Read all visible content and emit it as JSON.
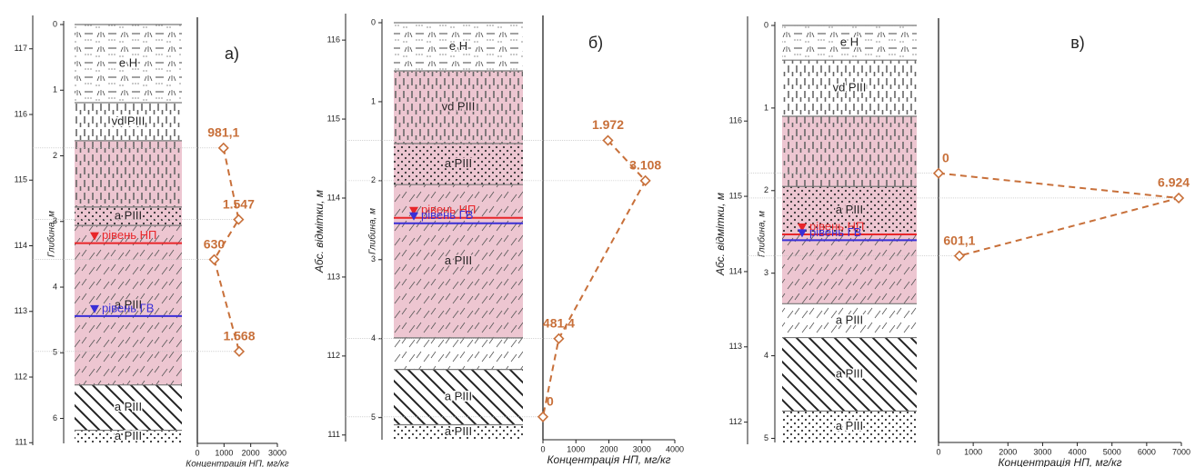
{
  "chart_data": [
    {
      "type": "line",
      "title": "а)",
      "xlabel": "Концентрація НП, мг/кг",
      "ylabel": "Глибина, м",
      "xlim": [
        0,
        3000
      ],
      "xticks": [
        0,
        1000,
        2000,
        3000
      ],
      "ylim": [
        0,
        6.38
      ],
      "yticks": [
        0,
        1,
        2,
        3,
        4,
        5,
        6
      ],
      "y2lim": [
        117.37,
        110.99
      ],
      "y2ticks": [
        117,
        116,
        115,
        114,
        113,
        112,
        111
      ],
      "series": [
        {
          "color": "#c8703a",
          "x": [
            981.1,
            1547,
            630,
            1568
          ],
          "values": [
            1.88,
            2.97,
            3.58,
            4.98
          ],
          "value_labels": [
            "981,1",
            "1.547",
            "630",
            "1.568"
          ]
        }
      ],
      "layers": [
        {
          "label": "е Н",
          "top": 0,
          "bottom": 1.19,
          "pattern": "eh",
          "fill": "#ffffff"
        },
        {
          "label": "vd PIII",
          "top": 1.19,
          "bottom": 1.77,
          "pattern": "dash",
          "fill": "#ffffff"
        },
        {
          "label": null,
          "top": 1.77,
          "bottom": 2.78,
          "pattern": "dash",
          "fill": "#edc6d1"
        },
        {
          "label": "а PIII",
          "top": 2.78,
          "bottom": 3.06,
          "pattern": "dots",
          "fill": "#edc6d1"
        },
        {
          "label": "а PIII",
          "top": 3.06,
          "bottom": 5.49,
          "pattern": "thin",
          "fill": "#edc6d1"
        },
        {
          "label": "а PIII",
          "top": 5.49,
          "bottom": 6.18,
          "pattern": "thick",
          "fill": "#ffffff"
        },
        {
          "label": "а PIII",
          "top": 6.18,
          "bottom": 6.38,
          "pattern": "dots",
          "fill": "#ffffff"
        }
      ],
      "levels": [
        {
          "label": "рівень НП",
          "value": 3.33,
          "color": "#e8262a"
        },
        {
          "label": "рівень ГВ",
          "value": 4.44,
          "color": "#3a2fd6"
        }
      ]
    },
    {
      "type": "line",
      "title": "б)",
      "xlabel": "Концентрація НП, мг/кг",
      "ylabel": "Глибина, м",
      "y2label": "Абс. відмітки, м",
      "xlim": [
        0,
        4000
      ],
      "xticks": [
        0,
        1000,
        2000,
        3000,
        4000
      ],
      "ylim": [
        0,
        5.28
      ],
      "yticks": [
        0,
        1,
        2,
        3,
        4,
        5
      ],
      "y2lim": [
        116.22,
        110.94
      ],
      "y2ticks": [
        116,
        115,
        114,
        113,
        112,
        111
      ],
      "series": [
        {
          "color": "#c8703a",
          "x": [
            1972,
            3108,
            481.4,
            0
          ],
          "values": [
            1.49,
            2.0,
            4.0,
            4.99
          ],
          "value_labels": [
            "1.972",
            "3.108",
            "481,4",
            "0"
          ]
        }
      ],
      "layers": [
        {
          "label": "е Н",
          "top": 0,
          "bottom": 0.61,
          "pattern": "eh",
          "fill": "#ffffff"
        },
        {
          "label": "vd PIII",
          "top": 0.61,
          "bottom": 1.53,
          "pattern": "dash",
          "fill": "#edc6d1"
        },
        {
          "label": "а PIII",
          "top": 1.53,
          "bottom": 2.05,
          "pattern": "dots",
          "fill": "#edc6d1"
        },
        {
          "label": "а PIII",
          "top": 2.05,
          "bottom": 3.99,
          "pattern": "thin",
          "fill": "#edc6d1"
        },
        {
          "label": null,
          "top": 3.99,
          "bottom": 4.39,
          "pattern": "thin",
          "fill": "#ffffff"
        },
        {
          "label": "а PIII",
          "top": 4.39,
          "bottom": 5.09,
          "pattern": "thick",
          "fill": "#ffffff"
        },
        {
          "label": "а PIII",
          "top": 5.09,
          "bottom": 5.28,
          "pattern": "dots",
          "fill": "#ffffff"
        }
      ],
      "levels": [
        {
          "label": "рівень НП",
          "value": 2.47,
          "color": "#e8262a"
        },
        {
          "label": "рівень ГВ",
          "value": 2.54,
          "color": "#3a2fd6"
        }
      ]
    },
    {
      "type": "line",
      "title": "в)",
      "xlabel": "Концентрація НП, мг/кг",
      "ylabel": "Глибина, м",
      "y2label": "Абс. відмітки, м",
      "xlim": [
        0,
        7000
      ],
      "xticks": [
        0,
        1000,
        2000,
        3000,
        4000,
        5000,
        6000,
        7000
      ],
      "ylim": [
        0,
        5.05
      ],
      "yticks": [
        0,
        1,
        2,
        3,
        4,
        5
      ],
      "y2lim": [
        117.27,
        111.73
      ],
      "y2ticks": [
        116,
        115,
        114,
        113,
        112
      ],
      "series": [
        {
          "color": "#c8703a",
          "x": [
            0,
            6924,
            601.1
          ],
          "values": [
            1.79,
            2.09,
            2.79
          ],
          "value_labels": [
            "0",
            "6.924",
            "601,1"
          ]
        }
      ],
      "layers": [
        {
          "label": "е Н",
          "top": 0,
          "bottom": 0.42,
          "pattern": "eh",
          "fill": "#ffffff"
        },
        {
          "label": "vd PIII",
          "top": 0.42,
          "bottom": 1.1,
          "pattern": "dash",
          "fill": "#ffffff"
        },
        {
          "label": null,
          "top": 1.1,
          "bottom": 1.95,
          "pattern": "dash",
          "fill": "#edc6d1"
        },
        {
          "label": "а PIII",
          "top": 1.95,
          "bottom": 2.53,
          "pattern": "dots",
          "fill": "#edc6d1"
        },
        {
          "label": null,
          "top": 2.53,
          "bottom": 3.37,
          "pattern": "thin",
          "fill": "#edc6d1"
        },
        {
          "label": "а PIII",
          "top": 3.37,
          "bottom": 3.78,
          "pattern": "thin",
          "fill": "#ffffff"
        },
        {
          "label": "а PIII",
          "top": 3.78,
          "bottom": 4.67,
          "pattern": "thick",
          "fill": "#ffffff"
        },
        {
          "label": "а PIII",
          "top": 4.67,
          "bottom": 5.05,
          "pattern": "dots",
          "fill": "#ffffff"
        }
      ],
      "levels": [
        {
          "label": "рівень НП",
          "value": 2.53,
          "color": "#e8262a"
        },
        {
          "label": "рівень ГВ",
          "value": 2.6,
          "color": "#3a2fd6"
        }
      ]
    }
  ]
}
